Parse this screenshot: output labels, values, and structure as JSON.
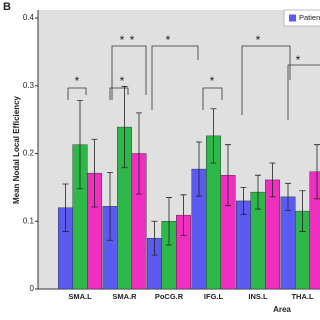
{
  "panel_label": "B",
  "chart_data": {
    "type": "bar",
    "ylabel": "Mean Nodal Local Efficiency",
    "xlabel": "Area",
    "categories": [
      "SMA.L",
      "SMA.R",
      "PoCG.R",
      "IFG.L",
      "INS.L",
      "THA.L"
    ],
    "series": [
      {
        "name": "Patien",
        "color": "#5b5bf0",
        "values": [
          0.12,
          0.122,
          0.075,
          0.177,
          0.13,
          0.136
        ],
        "errors": [
          0.035,
          0.05,
          0.025,
          0.04,
          0.02,
          0.02
        ]
      },
      {
        "color": "#2fb84a",
        "values": [
          0.213,
          0.239,
          0.1,
          0.226,
          0.143,
          0.115
        ],
        "errors": [
          0.065,
          0.06,
          0.035,
          0.04,
          0.025,
          0.03
        ]
      },
      {
        "color": "#ee2fc0",
        "values": [
          0.171,
          0.2,
          0.109,
          0.168,
          0.161,
          0.173
        ],
        "errors": [
          0.05,
          0.06,
          0.03,
          0.045,
          0.025,
          0.04
        ]
      }
    ],
    "ylim": [
      0,
      0.4
    ],
    "yticks": [
      0,
      {
        "value": 0.1,
        "label": "0.1"
      },
      {
        "value": 0.2,
        "label": "0.2"
      },
      {
        "value": 0.3,
        "label": "0.3"
      },
      {
        "value": 0.4,
        "label": "0.4"
      }
    ],
    "yticks_labels_note_free": null,
    "annotations": [
      "*",
      "*",
      "*",
      "*",
      "*",
      "*",
      "*"
    ]
  }
}
